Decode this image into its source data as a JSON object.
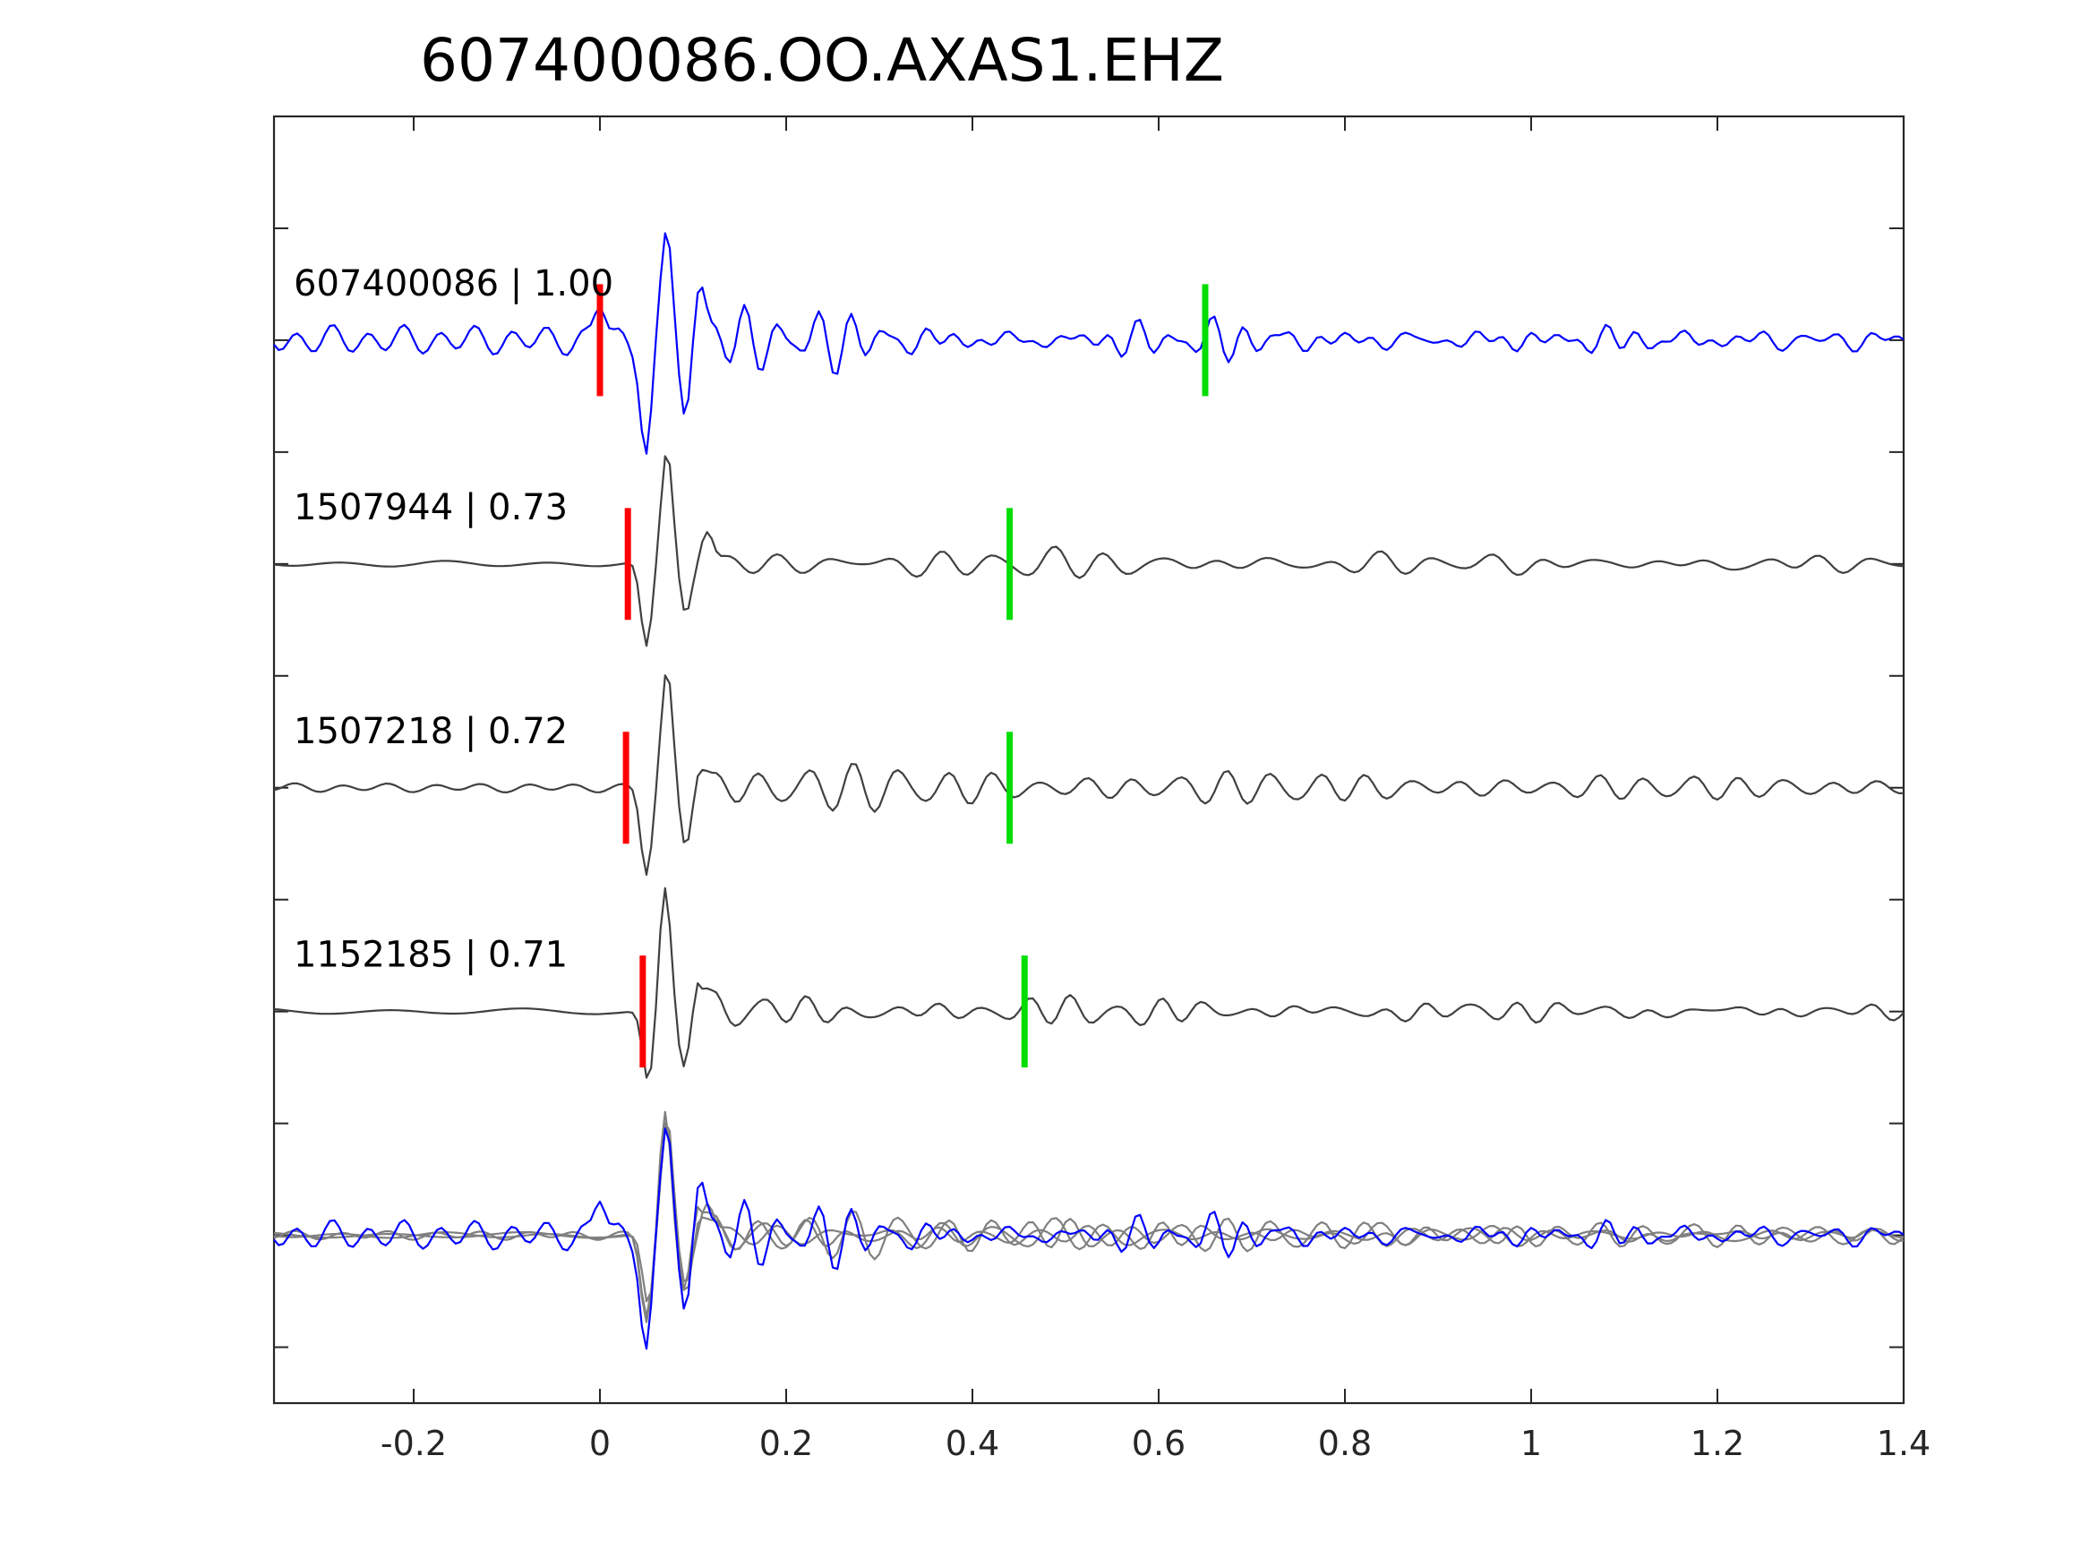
{
  "figure": {
    "title": "607400086.OO.AXAS1.EHZ"
  },
  "chart_data": {
    "type": "line",
    "title": "607400086.OO.AXAS1.EHZ",
    "xlabel": "",
    "ylabel": "",
    "xlim": [
      -0.35,
      1.4
    ],
    "xticks": [
      -0.2,
      0,
      0.2,
      0.4,
      0.6,
      0.8,
      1,
      1.2,
      1.4
    ],
    "xtick_labels": [
      "-0.2",
      "0",
      "0.2",
      "0.4",
      "0.6",
      "0.8",
      "1",
      "1.2",
      "1.4"
    ],
    "ylim": [
      -0.75,
      5.0
    ],
    "y_ticks_labeled": false,
    "grid": false,
    "legend": "none",
    "colors": {
      "template": "#0000ff",
      "match": "#404040",
      "overlay_match": "#808080",
      "p_pick": "#ff0000",
      "s_pick": "#00dd00"
    },
    "series": [
      {
        "label": "607400086 | 1.00",
        "event_id": "607400086",
        "cc": "1.00",
        "offset": 4.0,
        "color": "#0000ff",
        "p_pick": 0.0,
        "s_pick": 0.65,
        "noise_amp": 0.05,
        "noise_freq": 26,
        "main": [
          {
            "t": 0.0,
            "amp": 0.18
          },
          {
            "t": 0.05,
            "amp": -0.5
          },
          {
            "t": 0.072,
            "amp": 0.5
          },
          {
            "t": 0.092,
            "amp": -0.38
          },
          {
            "t": 0.108,
            "amp": 0.28
          }
        ],
        "coda_amp": 0.17,
        "coda_freq": 26,
        "coda_decay": 0.75
      },
      {
        "label": "1507944 | 0.73",
        "event_id": "1507944",
        "cc": "0.73",
        "offset": 3.0,
        "color": "#404040",
        "p_pick": 0.03,
        "s_pick": 0.44,
        "noise_amp": 0.01,
        "noise_freq": 9,
        "main": [
          {
            "t": 0.05,
            "amp": -0.38
          },
          {
            "t": 0.072,
            "amp": 0.5
          },
          {
            "t": 0.092,
            "amp": -0.22
          },
          {
            "t": 0.115,
            "amp": 0.16
          }
        ],
        "coda_amp": 0.08,
        "coda_freq": 17,
        "coda_decay": 0.9
      },
      {
        "label": "1507218 | 0.72",
        "event_id": "1507218",
        "cc": "0.72",
        "offset": 2.0,
        "color": "#404040",
        "p_pick": 0.028,
        "s_pick": 0.44,
        "noise_amp": 0.015,
        "noise_freq": 20,
        "main": [
          {
            "t": 0.05,
            "amp": -0.38
          },
          {
            "t": 0.072,
            "amp": 0.52
          },
          {
            "t": 0.092,
            "amp": -0.25
          },
          {
            "t": 0.108,
            "amp": 0.1
          }
        ],
        "coda_amp": 0.09,
        "coda_freq": 20,
        "coda_decay": 0.95
      },
      {
        "label": "1152185 | 0.71",
        "event_id": "1152185",
        "cc": "0.71",
        "offset": 1.0,
        "color": "#404040",
        "p_pick": 0.046,
        "s_pick": 0.456,
        "noise_amp": 0.01,
        "noise_freq": 7,
        "main": [
          {
            "t": 0.052,
            "amp": -0.32
          },
          {
            "t": 0.07,
            "amp": 0.55
          },
          {
            "t": 0.09,
            "amp": -0.25
          },
          {
            "t": 0.108,
            "amp": 0.16
          }
        ],
        "coda_amp": 0.08,
        "coda_freq": 21,
        "coda_decay": 0.9
      }
    ],
    "stacked": {
      "offset": 0.0,
      "description_none": true
    }
  }
}
